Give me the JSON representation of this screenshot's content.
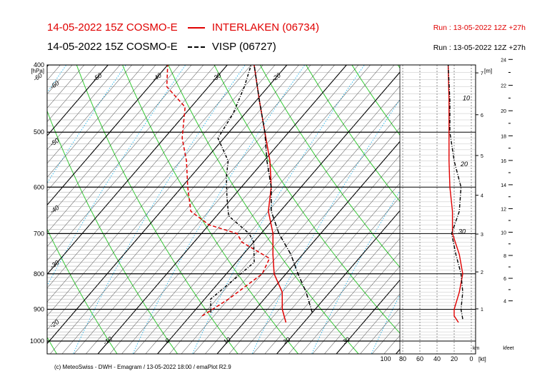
{
  "header": {
    "line1_left": "14-05-2022 15Z COSMO-E",
    "line1_station": "INTERLAKEN (06734)",
    "line1_run": "Run : 13-05-2022 12Z +27h",
    "line2_left": "14-05-2022 15Z COSMO-E",
    "line2_station": "VISP (06727)",
    "line2_run": "Run : 13-05-2022 12Z +27h"
  },
  "footer": "(c) MeteoSwiss - DWH - Emagram / 13-05-2022  18:00 / emaPlot R2.9",
  "colors": {
    "interlaken": "#e00000",
    "visp": "#000000",
    "dry_adiabat": "#33cc33",
    "mixing_ratio": "#33bbee",
    "isotherm": "#000000"
  },
  "chart_data": {
    "type": "line",
    "pressure_axis": {
      "unit": "[hPa]",
      "ticks": [
        400,
        500,
        600,
        700,
        800,
        900,
        1000
      ]
    },
    "temp_axis": {
      "ticks": [
        -10,
        0,
        10,
        20,
        30
      ]
    },
    "isotherm_labels": [
      "-60",
      "-50",
      "-40",
      "-30",
      "-20",
      "-60",
      "-50",
      "-40",
      "-30",
      "-20"
    ],
    "height_km_axis": {
      "unit": "[m]",
      "label": "km",
      "ticks": [
        1,
        2,
        3,
        4,
        5,
        6,
        7
      ]
    },
    "height_kfeet_axis": {
      "label": "kfeet",
      "ticks": [
        4,
        6,
        8,
        10,
        12,
        14,
        16,
        18,
        20,
        22,
        24
      ]
    },
    "wind_axis": {
      "unit": "[kt]",
      "ticks": [
        100,
        80,
        60,
        40,
        20,
        0
      ]
    },
    "wind_profile_labels": [
      "10",
      "20",
      "30"
    ],
    "series": [
      {
        "name": "INTERLAKEN (06734)",
        "kind": "temperature",
        "points": [
          [
            940,
            17
          ],
          [
            900,
            14.5
          ],
          [
            850,
            12
          ],
          [
            800,
            8
          ],
          [
            750,
            5
          ],
          [
            700,
            2
          ],
          [
            650,
            -2
          ],
          [
            600,
            -5
          ],
          [
            550,
            -9
          ],
          [
            500,
            -14
          ],
          [
            450,
            -19.5
          ],
          [
            400,
            -25.5
          ]
        ]
      },
      {
        "name": "INTERLAKEN (06734)",
        "kind": "dewpoint",
        "points": [
          [
            920,
            2
          ],
          [
            870,
            4
          ],
          [
            800,
            6
          ],
          [
            760,
            5
          ],
          [
            720,
            -2
          ],
          [
            700,
            -4
          ],
          [
            680,
            -10
          ],
          [
            650,
            -15
          ],
          [
            600,
            -19
          ],
          [
            550,
            -23
          ],
          [
            510,
            -27
          ],
          [
            460,
            -31
          ],
          [
            430,
            -37
          ],
          [
            400,
            -40
          ]
        ]
      },
      {
        "name": "VISP (06727)",
        "kind": "temperature",
        "points": [
          [
            910,
            20
          ],
          [
            850,
            16
          ],
          [
            800,
            12
          ],
          [
            750,
            8
          ],
          [
            700,
            3
          ],
          [
            650,
            -1.5
          ],
          [
            600,
            -5
          ],
          [
            550,
            -9.5
          ],
          [
            500,
            -14
          ],
          [
            450,
            -19.5
          ],
          [
            400,
            -25.5
          ]
        ]
      },
      {
        "name": "VISP (06727)",
        "kind": "dewpoint",
        "points": [
          [
            910,
            3
          ],
          [
            870,
            1
          ],
          [
            820,
            2
          ],
          [
            770,
            3
          ],
          [
            720,
            0
          ],
          [
            700,
            -2
          ],
          [
            660,
            -8
          ],
          [
            620,
            -11
          ],
          [
            580,
            -14
          ],
          [
            550,
            -16
          ],
          [
            510,
            -21
          ],
          [
            470,
            -22
          ],
          [
            430,
            -24
          ],
          [
            400,
            -26
          ]
        ]
      }
    ],
    "wind_speed_profile": [
      {
        "name": "INTERLAKEN (06734)",
        "points": [
          [
            940,
            15
          ],
          [
            920,
            20
          ],
          [
            900,
            20
          ],
          [
            850,
            14
          ],
          [
            800,
            10
          ],
          [
            750,
            14
          ],
          [
            700,
            22
          ],
          [
            650,
            22
          ],
          [
            600,
            25
          ],
          [
            550,
            26
          ],
          [
            500,
            26
          ],
          [
            450,
            26
          ],
          [
            400,
            27
          ]
        ]
      },
      {
        "name": "VISP (06727)",
        "points": [
          [
            930,
            10
          ],
          [
            900,
            12
          ],
          [
            850,
            10
          ],
          [
            800,
            12
          ],
          [
            750,
            18
          ],
          [
            700,
            23
          ],
          [
            650,
            14
          ],
          [
            600,
            12
          ],
          [
            550,
            20
          ],
          [
            500,
            25
          ],
          [
            450,
            25
          ],
          [
            400,
            27
          ]
        ]
      }
    ]
  }
}
